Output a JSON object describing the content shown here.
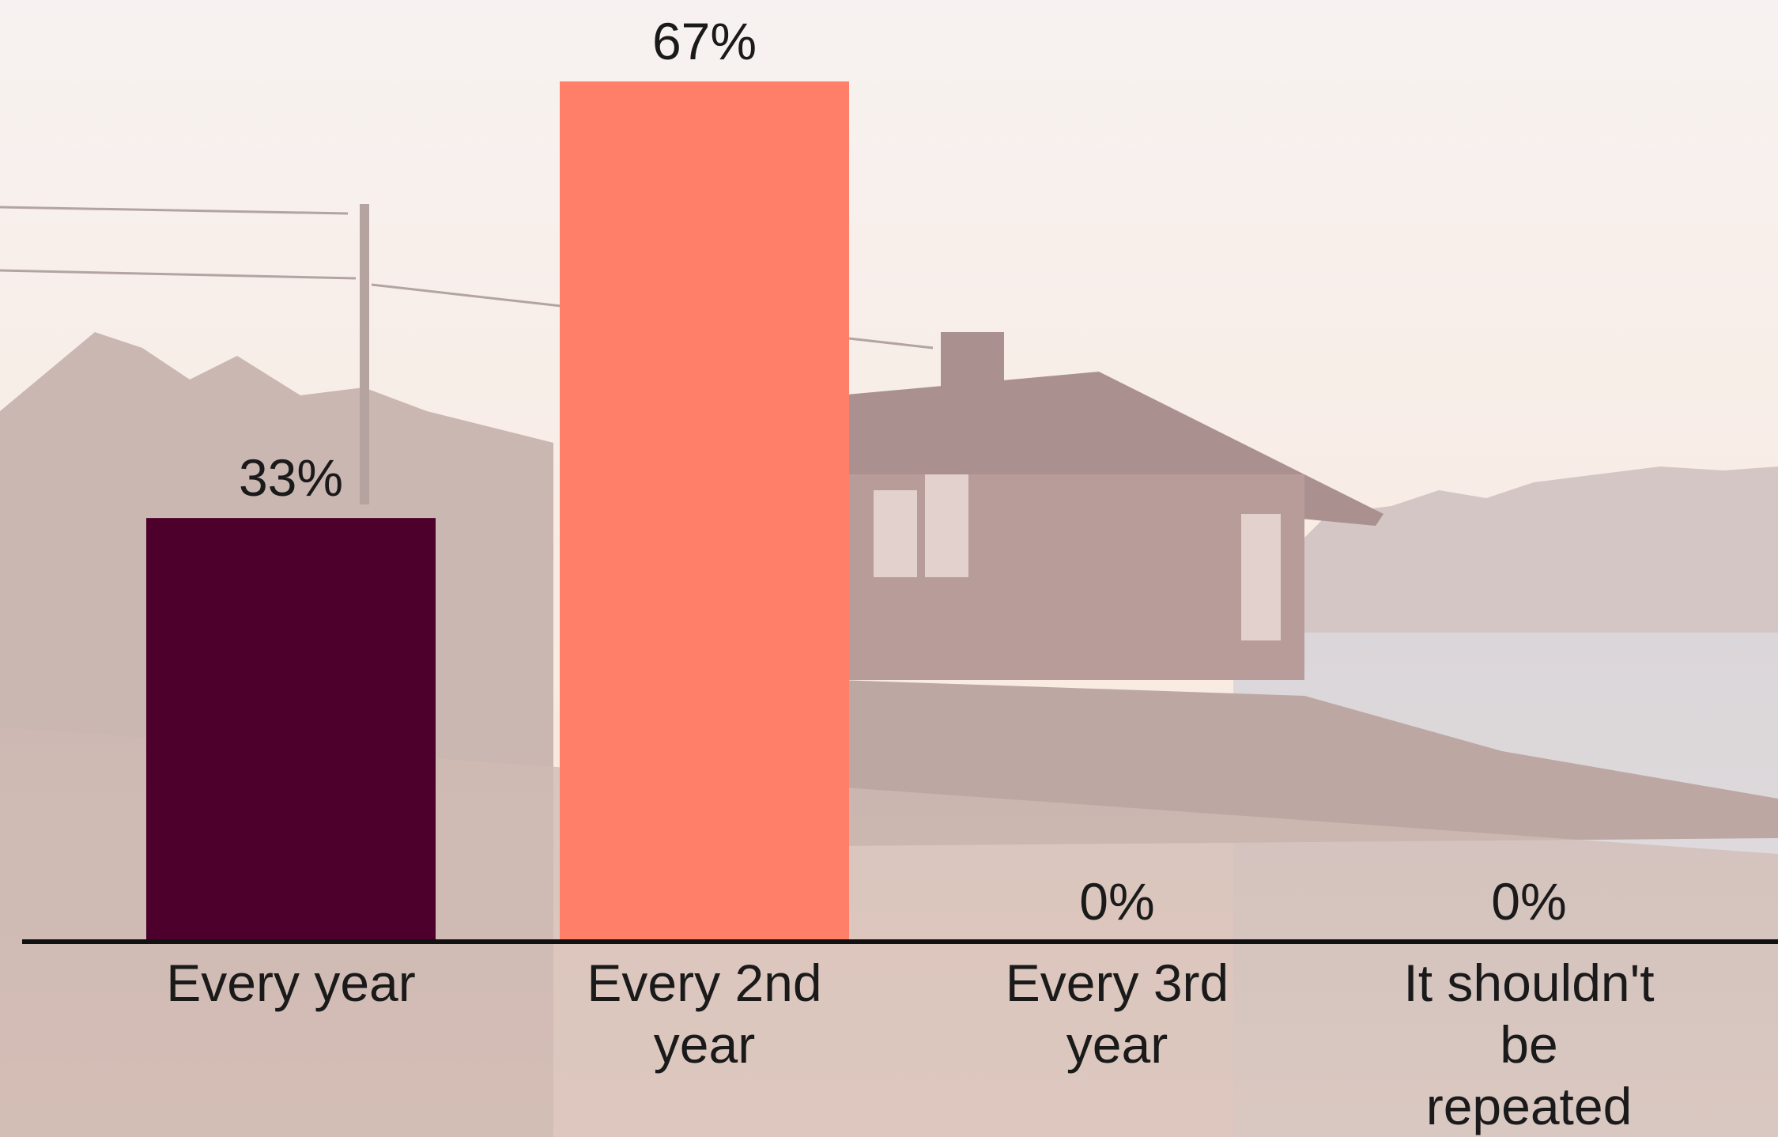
{
  "chart_data": {
    "type": "bar",
    "categories": [
      "Every year",
      "Every 2nd year",
      "Every 3rd year",
      "It shouldn't be repeated"
    ],
    "category_lines": [
      [
        "Every year"
      ],
      [
        "Every 2nd",
        "year"
      ],
      [
        "Every 3rd",
        "year"
      ],
      [
        "It shouldn't",
        "be",
        "repeated"
      ]
    ],
    "values": [
      33,
      67,
      0,
      0
    ],
    "value_labels": [
      "33%",
      "67%",
      "0%",
      "0%"
    ],
    "colors": [
      "#4d002c",
      "#ff7f68",
      "#4d002c",
      "#ff7f68"
    ],
    "ylim": [
      0,
      67
    ],
    "grid": false,
    "legend": "none"
  },
  "background": {
    "description_icon": "lake-house-sunset-photo",
    "sky_top": "#f4ece9",
    "sky_bottom": "#f6dccd",
    "house": "#9c7a76",
    "water": "#c9c5cb",
    "vegetation": "#b3928a"
  },
  "axis_color": "#111111"
}
